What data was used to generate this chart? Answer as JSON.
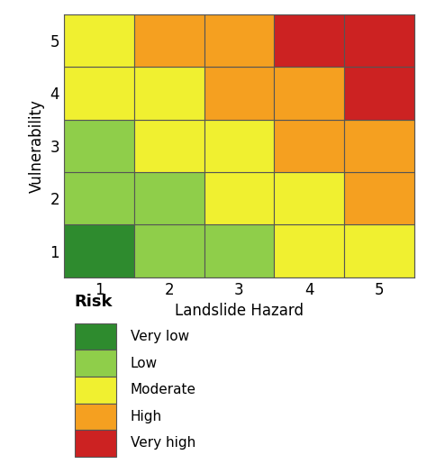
{
  "title_xlabel": "Landslide Hazard",
  "title_ylabel": "Vulnerability",
  "legend_title": "Risk",
  "colors": {
    "very_low": "#2e8b2e",
    "low": "#8fce4a",
    "moderate": "#f0f030",
    "high": "#f5a020",
    "very_high": "#cc2222"
  },
  "legend_labels": [
    "Very low",
    "Low",
    "Moderate",
    "High",
    "Very high"
  ],
  "legend_colors": [
    "#2e8b2e",
    "#8fce4a",
    "#f0f030",
    "#f5a020",
    "#cc2222"
  ],
  "matrix": [
    [
      "very_low",
      "low",
      "low",
      "moderate",
      "moderate"
    ],
    [
      "low",
      "low",
      "moderate",
      "moderate",
      "high"
    ],
    [
      "low",
      "moderate",
      "moderate",
      "high",
      "high"
    ],
    [
      "moderate",
      "moderate",
      "high",
      "high",
      "very_high"
    ],
    [
      "moderate",
      "high",
      "high",
      "very_high",
      "very_high"
    ]
  ],
  "cell_edge_color": "#555555",
  "cell_edge_lw": 0.8,
  "fig_bg": "#ffffff",
  "font_size_ticks": 12,
  "font_size_labels": 12,
  "font_size_legend_title": 13,
  "font_size_legend": 11
}
